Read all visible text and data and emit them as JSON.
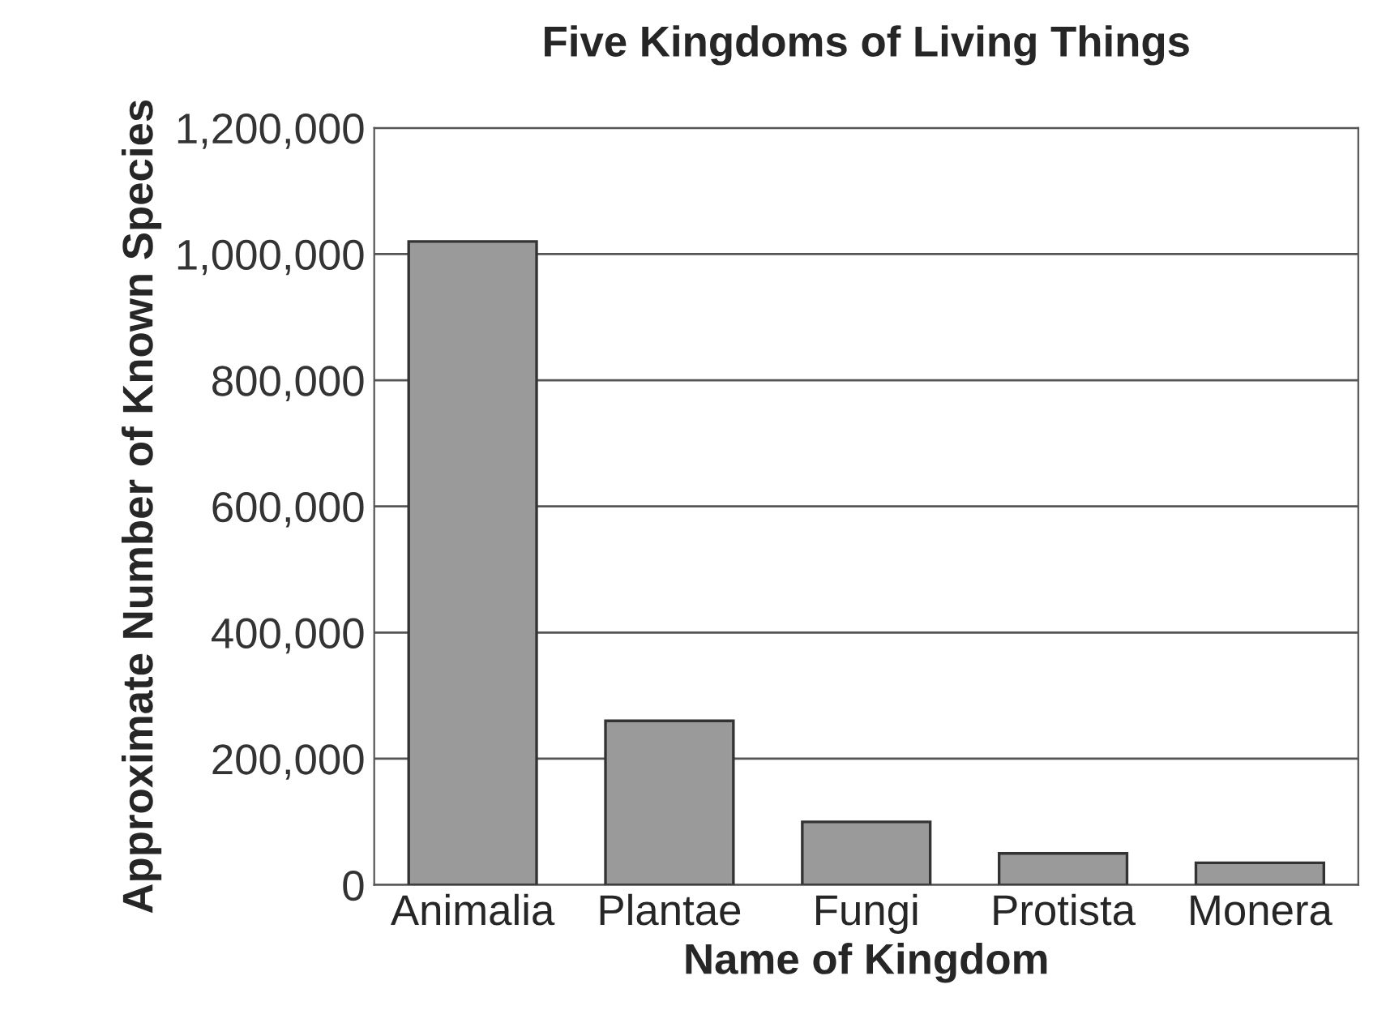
{
  "chart_data": {
    "type": "bar",
    "title": "Five Kingdoms of Living Things",
    "xlabel": "Name of Kingdom",
    "ylabel": "Approximate Number of Known Species",
    "categories": [
      "Animalia",
      "Plantae",
      "Fungi",
      "Protista",
      "Monera"
    ],
    "values": [
      1020000,
      260000,
      100000,
      50000,
      35000
    ],
    "color": "#9a9a9a",
    "ylim": [
      0,
      1200000
    ],
    "yticks": [
      {
        "value": 0,
        "label": "0"
      },
      {
        "value": 200000,
        "label": "200,000"
      },
      {
        "value": 400000,
        "label": "400,000"
      },
      {
        "value": 600000,
        "label": "600,000"
      },
      {
        "value": 800000,
        "label": "800,000"
      },
      {
        "value": 1000000,
        "label": "1,000,000"
      },
      {
        "value": 1200000,
        "label": "1,200,000"
      }
    ],
    "grid": "y",
    "legend": false
  }
}
